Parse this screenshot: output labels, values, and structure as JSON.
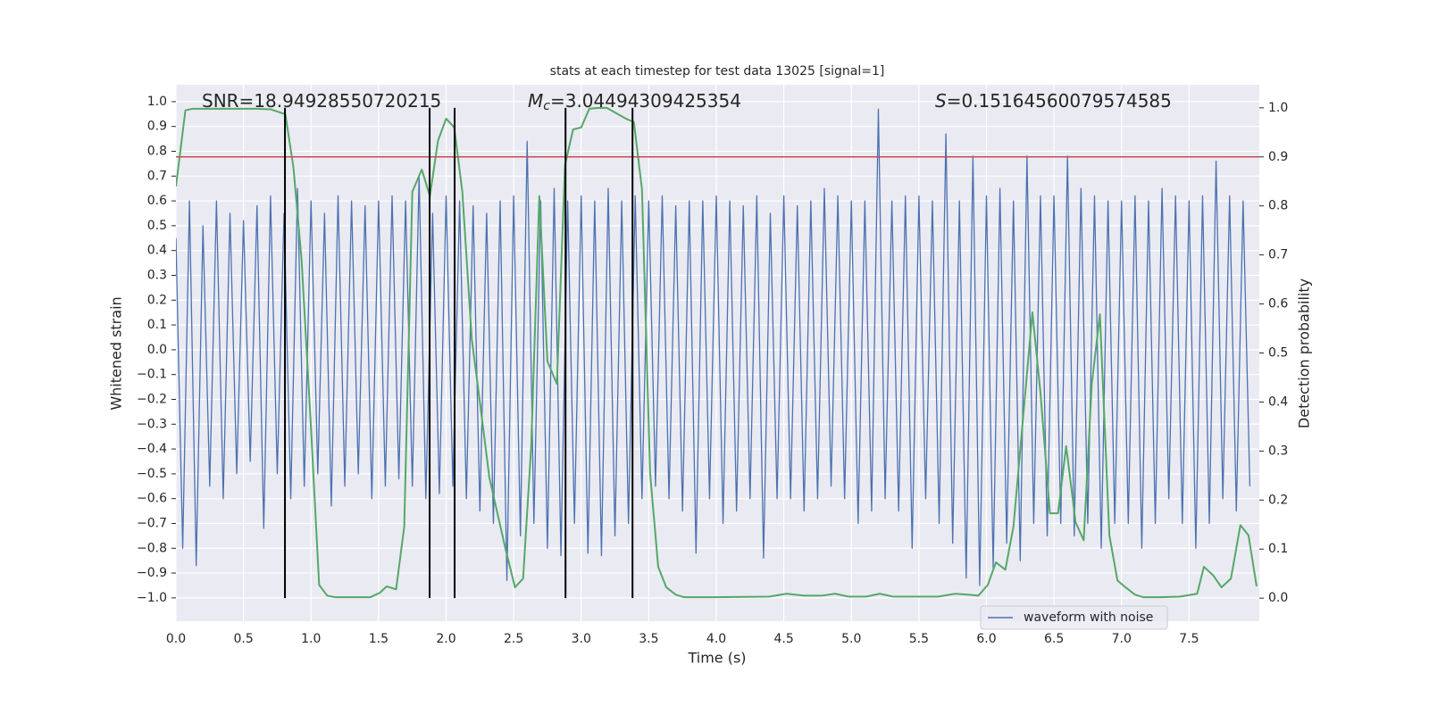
{
  "chart_data": {
    "type": "line",
    "title": "stats at each timestep for test data 13025 [signal=1]",
    "xlabel": "Time (s)",
    "ylabel": "Whitened strain",
    "y2label": "Detection probability",
    "xlim": [
      0,
      8.02
    ],
    "ylim": [
      -1.094,
      1.068
    ],
    "y2lim": [
      -0.047,
      1.047
    ],
    "grid": true,
    "legend": "lower right",
    "xticks": [
      {
        "value": 0,
        "label": "0.0"
      },
      0.5,
      {
        "value": 1,
        "label": "1.0"
      },
      1.5,
      {
        "value": 2,
        "label": "2.0"
      },
      2.5,
      {
        "value": 3,
        "label": "3.0"
      },
      3.5,
      {
        "value": 4,
        "label": "4.0"
      },
      4.5,
      {
        "value": 5,
        "label": "5.0"
      },
      5.5,
      {
        "value": 6,
        "label": "6.0"
      },
      6.5,
      {
        "value": 7,
        "label": "7.0"
      },
      7.5
    ],
    "yticks": [
      {
        "value": -1,
        "label": "−1.0"
      },
      {
        "value": -0.9,
        "label": "−0.9"
      },
      {
        "value": -0.8,
        "label": "−0.8"
      },
      {
        "value": -0.7,
        "label": "−0.7"
      },
      {
        "value": -0.6,
        "label": "−0.6"
      },
      {
        "value": -0.5,
        "label": "−0.5"
      },
      {
        "value": -0.4,
        "label": "−0.4"
      },
      {
        "value": -0.3,
        "label": "−0.3"
      },
      {
        "value": -0.2,
        "label": "−0.2"
      },
      {
        "value": -0.1,
        "label": "−0.1"
      },
      {
        "value": 0,
        "label": "0.0"
      },
      0.1,
      0.2,
      0.3,
      0.4,
      0.5,
      0.6,
      0.7,
      0.8,
      0.9,
      {
        "value": 1,
        "label": "1.0"
      }
    ],
    "y2ticks": [
      {
        "value": 0,
        "label": "0.0"
      },
      0.1,
      0.2,
      0.3,
      0.4,
      0.5,
      0.6,
      0.7,
      0.8,
      0.9,
      {
        "value": 1,
        "label": "1.0"
      }
    ],
    "series": [
      {
        "name": "waveform with noise",
        "color": "#4c72b0",
        "x": [
          0,
          0.05,
          0.1,
          0.15,
          0.2,
          0.25,
          0.3,
          0.35,
          0.4,
          0.45,
          0.5,
          0.55,
          0.6,
          0.65,
          0.7,
          0.75,
          0.8,
          0.85,
          0.9,
          0.95,
          1,
          1.05,
          1.1,
          1.15,
          1.2,
          1.25,
          1.3,
          1.35,
          1.4,
          1.45,
          1.5,
          1.55,
          1.6,
          1.65,
          1.7,
          1.75,
          1.8,
          1.85,
          1.9,
          1.95,
          2,
          2.05,
          2.1,
          2.15,
          2.2,
          2.25,
          2.3,
          2.35,
          2.4,
          2.45,
          2.5,
          2.55,
          2.6,
          2.65,
          2.7,
          2.75,
          2.8,
          2.85,
          2.9,
          2.95,
          3,
          3.05,
          3.1,
          3.15,
          3.2,
          3.25,
          3.3,
          3.35,
          3.4,
          3.45,
          3.5,
          3.55,
          3.6,
          3.65,
          3.7,
          3.75,
          3.8,
          3.85,
          3.9,
          3.95,
          4,
          4.05,
          4.1,
          4.15,
          4.2,
          4.25,
          4.3,
          4.35,
          4.4,
          4.45,
          4.5,
          4.55,
          4.6,
          4.65,
          4.7,
          4.75,
          4.8,
          4.85,
          4.9,
          4.95,
          5,
          5.05,
          5.1,
          5.15,
          5.2,
          5.25,
          5.3,
          5.35,
          5.4,
          5.45,
          5.5,
          5.55,
          5.6,
          5.65,
          5.7,
          5.75,
          5.8,
          5.85,
          5.9,
          5.95,
          6,
          6.05,
          6.1,
          6.15,
          6.2,
          6.25,
          6.3,
          6.35,
          6.4,
          6.45,
          6.5,
          6.55,
          6.6,
          6.65,
          6.7,
          6.75,
          6.8,
          6.85,
          6.9,
          6.95,
          7,
          7.05,
          7.1,
          7.15,
          7.2,
          7.25,
          7.3,
          7.35,
          7.4,
          7.45,
          7.5,
          7.55,
          7.6,
          7.65,
          7.7,
          7.75,
          7.8,
          7.85,
          7.9,
          7.95
        ],
        "values": [
          0.45,
          -0.8,
          0.6,
          -0.87,
          0.5,
          -0.55,
          0.6,
          -0.6,
          0.55,
          -0.5,
          0.52,
          -0.45,
          0.58,
          -0.72,
          0.62,
          -0.5,
          0.55,
          -0.6,
          0.65,
          -0.55,
          0.6,
          -0.5,
          0.55,
          -0.63,
          0.62,
          -0.55,
          0.6,
          -0.5,
          0.58,
          -0.6,
          0.6,
          -0.55,
          0.62,
          -0.52,
          0.6,
          -0.55,
          0.7,
          -0.6,
          0.55,
          -0.58,
          0.62,
          -0.55,
          0.6,
          -0.6,
          0.58,
          -0.65,
          0.55,
          -0.7,
          0.6,
          -0.93,
          0.62,
          -0.75,
          0.84,
          -0.7,
          0.6,
          -0.8,
          0.65,
          -0.83,
          0.6,
          -0.7,
          0.62,
          -0.82,
          0.6,
          -0.83,
          0.65,
          -0.75,
          0.6,
          -0.7,
          0.62,
          -0.6,
          0.6,
          -0.55,
          0.62,
          -0.6,
          0.58,
          -0.65,
          0.6,
          -0.82,
          0.6,
          -0.6,
          0.62,
          -0.7,
          0.6,
          -0.65,
          0.58,
          -0.6,
          0.62,
          -0.84,
          0.55,
          -0.6,
          0.62,
          -0.6,
          0.58,
          -0.65,
          0.6,
          -0.6,
          0.65,
          -0.55,
          0.62,
          -0.6,
          0.6,
          -0.7,
          0.6,
          -0.65,
          0.97,
          -0.6,
          0.6,
          -0.65,
          0.62,
          -0.8,
          0.62,
          -0.6,
          0.6,
          -0.7,
          0.87,
          -0.78,
          0.6,
          -0.92,
          0.78,
          -0.95,
          0.62,
          -0.88,
          0.65,
          -0.78,
          0.6,
          -0.85,
          0.78,
          -0.7,
          0.62,
          -0.75,
          0.62,
          -0.7,
          0.78,
          -0.75,
          0.65,
          -0.7,
          0.62,
          -0.8,
          0.6,
          -0.7,
          0.6,
          -0.7,
          0.62,
          -0.8,
          0.6,
          -0.7,
          0.65,
          -0.6,
          0.62,
          -0.7,
          0.6,
          -0.8,
          0.62,
          -0.7,
          0.76,
          -0.6,
          0.62,
          -0.65,
          0.6,
          -0.55
        ]
      },
      {
        "color": "#55a868",
        "axis": "y2",
        "x": [
          0,
          0.07,
          0.12,
          0.3,
          0.45,
          0.6,
          0.7,
          0.81,
          0.87,
          0.93,
          1.0,
          1.06,
          1.12,
          1.18,
          1.34,
          1.44,
          1.51,
          1.56,
          1.63,
          1.69,
          1.75,
          1.82,
          1.88,
          1.94,
          2.0,
          2.06,
          2.12,
          2.19,
          2.25,
          2.32,
          2.44,
          2.51,
          2.57,
          2.63,
          2.69,
          2.75,
          2.82,
          2.88,
          2.94,
          3.0,
          3.06,
          3.13,
          3.19,
          3.26,
          3.33,
          3.39,
          3.45,
          3.51,
          3.57,
          3.63,
          3.7,
          3.76,
          3.99,
          4.39,
          4.52,
          4.65,
          4.78,
          4.88,
          4.98,
          5.11,
          5.21,
          5.31,
          5.64,
          5.77,
          5.87,
          5.94,
          6.01,
          6.07,
          6.14,
          6.2,
          6.27,
          6.34,
          6.4,
          6.47,
          6.53,
          6.59,
          6.66,
          6.72,
          6.78,
          6.84,
          6.91,
          6.97,
          7.03,
          7.1,
          7.16,
          7.29,
          7.43,
          7.56,
          7.61,
          7.68,
          7.74,
          7.81,
          7.88,
          7.94,
          8.0
        ],
        "values": [
          0.84,
          0.995,
          0.998,
          0.998,
          0.998,
          0.998,
          0.997,
          0.987,
          0.878,
          0.69,
          0.346,
          0.027,
          0.005,
          0.002,
          0.002,
          0.002,
          0.011,
          0.024,
          0.018,
          0.146,
          0.829,
          0.874,
          0.82,
          0.933,
          0.978,
          0.96,
          0.829,
          0.528,
          0.4,
          0.246,
          0.1,
          0.022,
          0.04,
          0.31,
          0.82,
          0.483,
          0.437,
          0.883,
          0.956,
          0.96,
          0.998,
          1.0,
          1.0,
          0.989,
          0.978,
          0.971,
          0.834,
          0.255,
          0.064,
          0.022,
          0.007,
          0.002,
          0.002,
          0.003,
          0.009,
          0.005,
          0.005,
          0.009,
          0.003,
          0.003,
          0.009,
          0.003,
          0.003,
          0.009,
          0.007,
          0.005,
          0.027,
          0.073,
          0.058,
          0.146,
          0.364,
          0.583,
          0.419,
          0.173,
          0.173,
          0.31,
          0.155,
          0.118,
          0.437,
          0.579,
          0.128,
          0.036,
          0.022,
          0.007,
          0.002,
          0.002,
          0.003,
          0.009,
          0.064,
          0.046,
          0.022,
          0.04,
          0.149,
          0.128,
          0.024
        ]
      }
    ],
    "threshold": {
      "value": 0.9,
      "axis": "y2",
      "color": "#c44e52"
    },
    "vlines": {
      "x": [
        0.807,
        1.878,
        2.063,
        2.884,
        3.38
      ],
      "span": [
        0,
        1
      ],
      "axis": "y2",
      "color": "#000000"
    },
    "annotations": [
      {
        "text": "SNR=18.94928550720215"
      },
      {
        "symbol": "M",
        "subscript": "c",
        "text": "=3.04494309425354"
      },
      {
        "symbol": "S",
        "text": "=0.15164560079574585"
      }
    ]
  }
}
